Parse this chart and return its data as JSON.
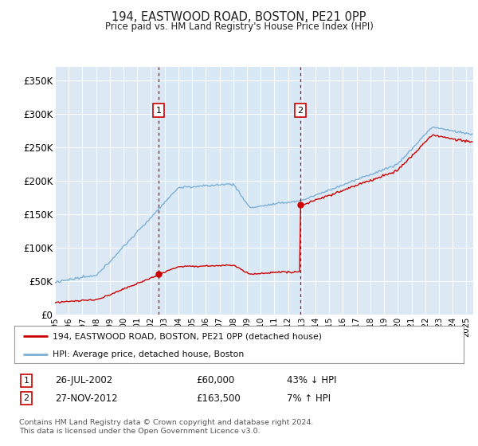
{
  "title1": "194, EASTWOOD ROAD, BOSTON, PE21 0PP",
  "title2": "Price paid vs. HM Land Registry's House Price Index (HPI)",
  "legend_label1": "194, EASTWOOD ROAD, BOSTON, PE21 0PP (detached house)",
  "legend_label2": "HPI: Average price, detached house, Boston",
  "footnote": "Contains HM Land Registry data © Crown copyright and database right 2024.\nThis data is licensed under the Open Government Licence v3.0.",
  "transaction1": {
    "num": "1",
    "date": "26-JUL-2002",
    "price": "£60,000",
    "pct": "43% ↓ HPI"
  },
  "transaction2": {
    "num": "2",
    "date": "27-NOV-2012",
    "price": "£163,500",
    "pct": "7% ↑ HPI"
  },
  "vline1_year": 2002.56,
  "vline2_year": 2012.9,
  "marker1_price": 60000,
  "marker2_price": 163500,
  "line_color_red": "#cc0000",
  "line_color_blue": "#7bafd4",
  "highlight_color": "#d9e8f5",
  "plot_bg": "#dce9f5",
  "ylim": [
    0,
    370000
  ],
  "yticks": [
    0,
    50000,
    100000,
    150000,
    200000,
    250000,
    300000,
    350000
  ],
  "ytick_labels": [
    "£0",
    "£50K",
    "£100K",
    "£150K",
    "£200K",
    "£250K",
    "£300K",
    "£350K"
  ],
  "xlim_start": 1995,
  "xlim_end": 2025.5
}
